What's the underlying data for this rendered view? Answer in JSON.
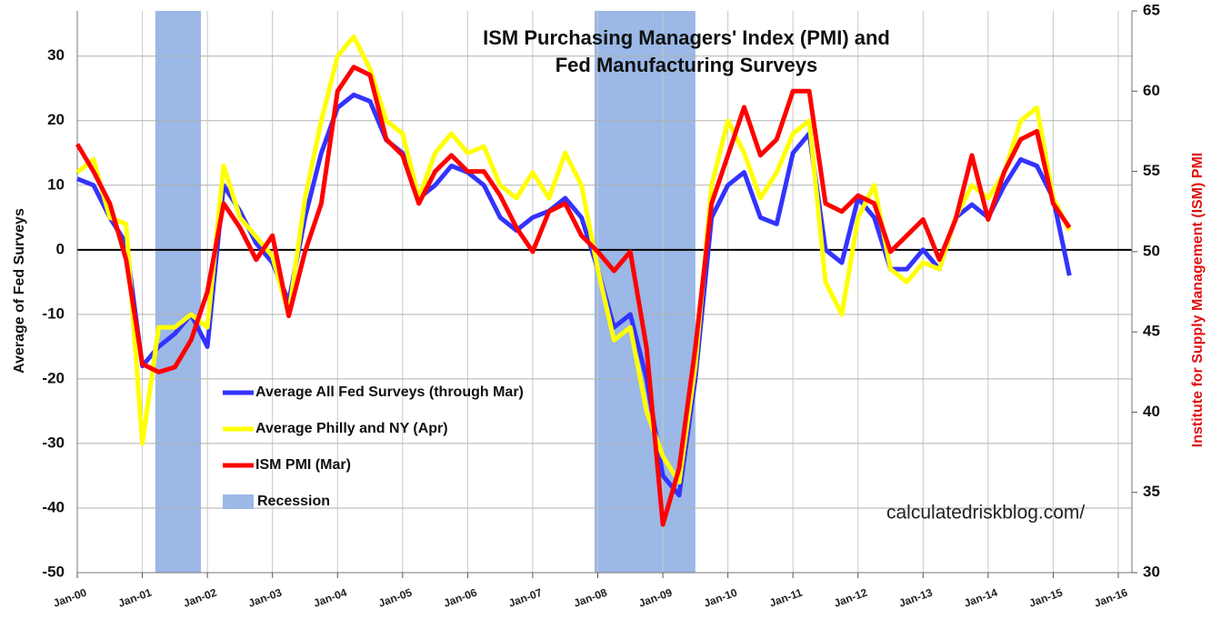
{
  "chart_data": {
    "type": "line",
    "title": [
      "ISM Purchasing Managers' Index (PMI) and",
      "Fed Manufacturing Surveys"
    ],
    "ylabel": "Average of Fed Surveys",
    "y2label": "Institute for Supply Management (ISM) PMI",
    "annotation": "calculatedriskblog.com/",
    "x": [
      2000,
      2000.25,
      2000.5,
      2000.75,
      2001,
      2001.25,
      2001.5,
      2001.75,
      2002,
      2002.25,
      2002.5,
      2002.75,
      2003,
      2003.25,
      2003.5,
      2003.75,
      2004,
      2004.25,
      2004.5,
      2004.75,
      2005,
      2005.25,
      2005.5,
      2005.75,
      2006,
      2006.25,
      2006.5,
      2006.75,
      2007,
      2007.25,
      2007.5,
      2007.75,
      2008,
      2008.25,
      2008.5,
      2008.75,
      2009,
      2009.25,
      2009.5,
      2009.75,
      2010,
      2010.25,
      2010.5,
      2010.75,
      2011,
      2011.25,
      2011.5,
      2011.75,
      2012,
      2012.25,
      2012.5,
      2012.75,
      2013,
      2013.25,
      2013.5,
      2013.75,
      2014,
      2014.25,
      2014.5,
      2014.75,
      2015,
      2015.25
    ],
    "xlim": [
      2000,
      2016
    ],
    "xticks": [
      {
        "value": 2000,
        "label": "Jan-00"
      },
      {
        "value": 2001,
        "label": "Jan-01"
      },
      {
        "value": 2002,
        "label": "Jan-02"
      },
      {
        "value": 2003,
        "label": "Jan-03"
      },
      {
        "value": 2004,
        "label": "Jan-04"
      },
      {
        "value": 2005,
        "label": "Jan-05"
      },
      {
        "value": 2006,
        "label": "Jan-06"
      },
      {
        "value": 2007,
        "label": "Jan-07"
      },
      {
        "value": 2008,
        "label": "Jan-08"
      },
      {
        "value": 2009,
        "label": "Jan-09"
      },
      {
        "value": 2010,
        "label": "Jan-10"
      },
      {
        "value": 2011,
        "label": "Jan-11"
      },
      {
        "value": 2012,
        "label": "Jan-12"
      },
      {
        "value": 2013,
        "label": "Jan-13"
      },
      {
        "value": 2014,
        "label": "Jan-14"
      },
      {
        "value": 2015,
        "label": "Jan-15"
      },
      {
        "value": 2016,
        "label": "Jan-16"
      }
    ],
    "ylim": [
      -50,
      37
    ],
    "yticks": [
      -50,
      -40,
      -30,
      -20,
      -10,
      0,
      10,
      20,
      30
    ],
    "y2lim": [
      30,
      65
    ],
    "y2ticks": [
      30,
      35,
      40,
      45,
      50,
      55,
      60,
      65
    ],
    "grid": true,
    "series": [
      {
        "name": "Average All Fed Surveys (through Mar)",
        "color": "#3333ff",
        "values": [
          11,
          10,
          5,
          1,
          -18,
          -15,
          -13,
          -10,
          -15,
          10,
          6,
          1,
          -2,
          -8,
          5,
          15,
          22,
          24,
          23,
          17,
          15,
          8,
          10,
          13,
          12,
          10,
          5,
          3,
          5,
          6,
          8,
          5,
          -3,
          -12,
          -10,
          -20,
          -35,
          -38,
          -20,
          5,
          10,
          12,
          5,
          4,
          15,
          18,
          0,
          -2,
          8,
          5,
          -3,
          -3,
          0,
          -3,
          5,
          7,
          5,
          10,
          14,
          13,
          8,
          -4
        ]
      },
      {
        "name": "Average Philly and NY (Apr)",
        "color": "#ffff00",
        "values": [
          12,
          14,
          5,
          4,
          -30,
          -12,
          -12,
          -10,
          -12,
          13,
          5,
          2,
          -1,
          -10,
          8,
          20,
          30,
          33,
          28,
          20,
          18,
          8,
          15,
          18,
          15,
          16,
          10,
          8,
          12,
          8,
          15,
          10,
          -3,
          -14,
          -12,
          -25,
          -32,
          -36,
          -18,
          10,
          20,
          15,
          8,
          12,
          18,
          20,
          -5,
          -10,
          5,
          10,
          -3,
          -5,
          -2,
          -3,
          5,
          10,
          8,
          12,
          20,
          22,
          8,
          3
        ]
      },
      {
        "name": "ISM PMI (Mar)",
        "color": "#ff0000",
        "axis": "y2",
        "values": [
          56.7,
          55,
          53,
          49.5,
          43,
          42.5,
          42.8,
          44.5,
          47.5,
          53,
          51.5,
          49.5,
          51,
          46,
          50,
          53,
          60,
          61.5,
          61,
          57,
          56,
          53,
          55,
          56,
          55,
          55,
          53.5,
          51.5,
          50,
          52.5,
          53,
          51,
          50,
          48.8,
          50,
          44,
          33,
          36.5,
          44,
          53,
          56,
          59,
          56,
          57,
          60,
          60,
          53,
          52.5,
          53.5,
          53,
          50,
          51,
          52,
          49.5,
          52,
          56,
          52,
          55,
          57,
          57.5,
          53,
          51.5
        ]
      }
    ],
    "recession": {
      "name": "Recession",
      "color": "#9bb8e6",
      "spans": [
        [
          2001.2,
          2001.9
        ],
        [
          2007.95,
          2009.5
        ]
      ]
    }
  }
}
